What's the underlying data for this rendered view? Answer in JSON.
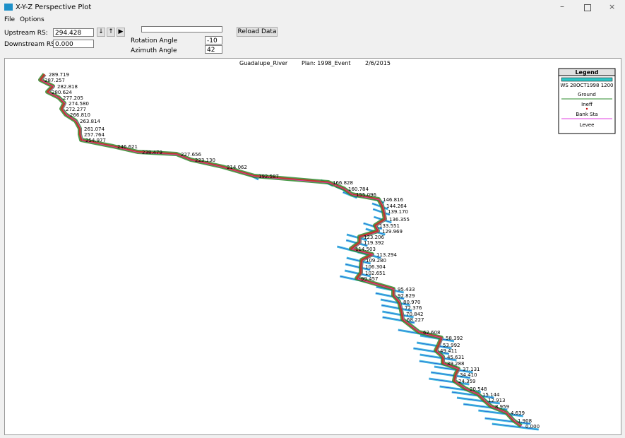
{
  "window": {
    "title": "X-Y-Z Perspective Plot"
  },
  "menu": [
    "File",
    "Options"
  ],
  "controls": {
    "upstream_label": "Upstream RS:",
    "upstream_value": "294.428",
    "downstream_label": "Downstream RS:",
    "downstream_value": "0.000",
    "rotation_label": "Rotation Angle",
    "rotation_value": "-10",
    "azimuth_label": "Azimuth Angle",
    "azimuth_value": "42",
    "reload_button": "Reload Data"
  },
  "plot": {
    "river": "Guadalupe_River",
    "plan": "Plan: 1998_Event",
    "date": "2/6/2015",
    "legend": {
      "title": "Legend",
      "entries": [
        "WS 28OCT1998 1200",
        "Ground",
        "Ineff",
        "Bank Sta",
        "Levee"
      ]
    },
    "stations": [
      "289.719",
      "287.257",
      "282.818",
      "280.624",
      "277.205",
      "274.580",
      "272.277",
      "266.810",
      "263.814",
      "261.074",
      "257.764",
      "254.977",
      "246.621",
      "238.479",
      "227.656",
      "223.130",
      "214.062",
      "192.587",
      "166.828",
      "160.784",
      "155.096",
      "146.816",
      "144.264",
      "139.170",
      "136.355",
      "133.551",
      "129.969",
      "123.206",
      "119.392",
      "114.503",
      "113.294",
      "109.280",
      "106.304",
      "102.651",
      "99.457",
      "95.433",
      "92.829",
      "80.970",
      "72.376",
      "70.842",
      "68.227",
      "62.608",
      "58.392",
      "53.992",
      "49.411",
      "45.631",
      "39.288",
      "37.131",
      "34.410",
      "24.359",
      "20.548",
      "15.144",
      "12.913",
      "8.959",
      "4.639",
      "1.908",
      "0.000"
    ]
  }
}
